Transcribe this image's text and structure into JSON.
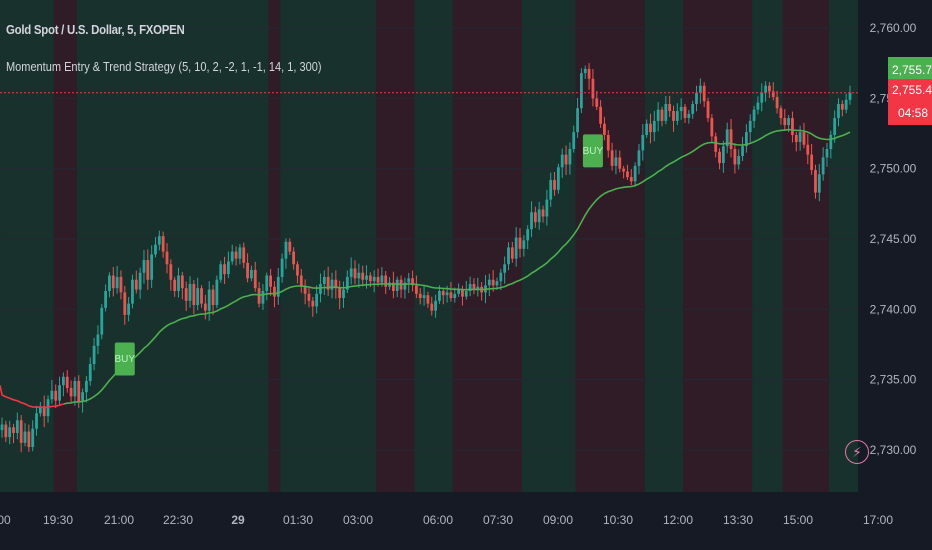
{
  "header": {
    "symbol_title": "Gold Spot / U.S. Dollar, 5, FXOPEN",
    "study_title": "Momentum Entry & Trend Strategy (5, 10, 2, -2, 1, -1, 14, 1, 300)"
  },
  "colors": {
    "background": "#161a25",
    "grid": "#242835",
    "bull_candle": "#26a69a",
    "bear_candle": "#ef5350",
    "ma_up": "#4caf50",
    "ma_down": "#f23645",
    "bg_bull_zone": "#1b3a2f",
    "bg_bear_zone": "#3a1e27",
    "buy_signal": "#4caf50",
    "price_line": "#f23645"
  },
  "price_axis": {
    "ticks": [
      "2,760.00",
      "2,755.00",
      "2,750.00",
      "2,745.00",
      "2,740.00",
      "2,735.00",
      "2,730.00"
    ],
    "current_high_badge": "2,755.72",
    "current_price_badge": "2,755.40",
    "countdown": "04:58"
  },
  "time_axis": {
    "ticks": [
      "00",
      "19:30",
      "21:00",
      "22:30",
      "29",
      "01:30",
      "03:00",
      "06:00",
      "07:30",
      "09:00",
      "10:30",
      "12:00",
      "13:30",
      "15:00",
      "17:00"
    ]
  },
  "signals": [
    {
      "label": "BUY",
      "time_index": 32,
      "price": 2736.5
    },
    {
      "label": "BUY",
      "time_index": 154,
      "price": 2751.3
    }
  ],
  "chart_data": {
    "type": "candlestick",
    "title": "Gold Spot / U.S. Dollar, 5, FXOPEN",
    "series_name": "Momentum Entry & Trend Strategy (5, 10, 2, -2, 1, -1, 14, 1, 300)",
    "ylim": [
      2727,
      2762
    ],
    "y_ticks": [
      2760,
      2755,
      2750,
      2745,
      2740,
      2735,
      2730
    ],
    "x_tick_labels": [
      "00",
      "19:30",
      "21:00",
      "22:30",
      "29",
      "01:30",
      "03:00",
      "06:00",
      "07:30",
      "09:00",
      "10:30",
      "12:00",
      "13:30",
      "15:00",
      "17:00"
    ],
    "grid": true,
    "closes": [
      2731.8,
      2730.9,
      2731.6,
      2731.2,
      2732.1,
      2730.5,
      2731.3,
      2730.2,
      2731.5,
      2732.6,
      2733.1,
      2732.4,
      2733.6,
      2734.2,
      2733.5,
      2734.6,
      2735.2,
      2734.4,
      2733.8,
      2734.9,
      2733.4,
      2734.1,
      2734.9,
      2736.1,
      2737.4,
      2738.2,
      2740.1,
      2741.3,
      2742.4,
      2741.5,
      2742.3,
      2741.2,
      2739.6,
      2740.4,
      2742.1,
      2741.4,
      2742.6,
      2743.5,
      2742.1,
      2743.9,
      2744.6,
      2745.2,
      2744.1,
      2743.2,
      2742.1,
      2741.3,
      2742.4,
      2741.5,
      2740.6,
      2741.8,
      2740.3,
      2741.5,
      2740.4,
      2739.9,
      2741.4,
      2740.3,
      2742.1,
      2743.2,
      2742.5,
      2743.4,
      2744.1,
      2743.6,
      2744.4,
      2743.3,
      2742.2,
      2742.8,
      2741.5,
      2740.4,
      2741.3,
      2742.4,
      2741.6,
      2740.9,
      2742.3,
      2743.6,
      2744.8,
      2744.1,
      2743.2,
      2742.4,
      2741.6,
      2741.1,
      2740.6,
      2740.2,
      2741.1,
      2741.8,
      2742.3,
      2741.4,
      2742.1,
      2741.5,
      2740.8,
      2741.4,
      2742.3,
      2742.9,
      2742.2,
      2742.6,
      2742.1,
      2742.4,
      2742.0,
      2742.3,
      2741.9,
      2742.4,
      2741.6,
      2741.9,
      2741.3,
      2742.1,
      2741.4,
      2741.9,
      2742.2,
      2741.7,
      2741.1,
      2740.8,
      2741.0,
      2740.4,
      2739.9,
      2740.6,
      2741.3,
      2741.0,
      2741.2,
      2740.8,
      2741.1,
      2741.4,
      2740.9,
      2741.3,
      2741.8,
      2741.4,
      2741.6,
      2741.2,
      2741.7,
      2742.1,
      2741.7,
      2742.0,
      2742.6,
      2743.2,
      2744.4,
      2743.6,
      2745.1,
      2744.3,
      2744.9,
      2745.7,
      2746.9,
      2746.2,
      2747.1,
      2746.6,
      2747.8,
      2749.2,
      2748.5,
      2750.1,
      2751.0,
      2750.3,
      2751.4,
      2752.6,
      2754.3,
      2756.8,
      2757.1,
      2756.4,
      2755.0,
      2754.4,
      2753.2,
      2752.4,
      2751.3,
      2750.2,
      2750.8,
      2750.0,
      2749.8,
      2749.4,
      2749.1,
      2750.2,
      2751.3,
      2752.4,
      2753.2,
      2752.6,
      2753.4,
      2754.2,
      2753.4,
      2754.6,
      2754.1,
      2753.4,
      2754.1,
      2754.4,
      2753.6,
      2753.9,
      2754.6,
      2755.4,
      2755.9,
      2754.8,
      2753.6,
      2752.3,
      2751.2,
      2750.4,
      2751.6,
      2752.8,
      2751.4,
      2750.3,
      2750.9,
      2751.6,
      2752.6,
      2753.4,
      2754.2,
      2754.7,
      2755.4,
      2755.9,
      2755.5,
      2755.1,
      2754.3,
      2753.6,
      2753.1,
      2753.6,
      2752.4,
      2751.9,
      2752.6,
      2751.7,
      2751.0,
      2749.9,
      2748.3,
      2749.6,
      2750.8,
      2751.4,
      2752.4,
      2753.6,
      2754.6,
      2754.2,
      2754.9,
      2755.4
    ]
  }
}
